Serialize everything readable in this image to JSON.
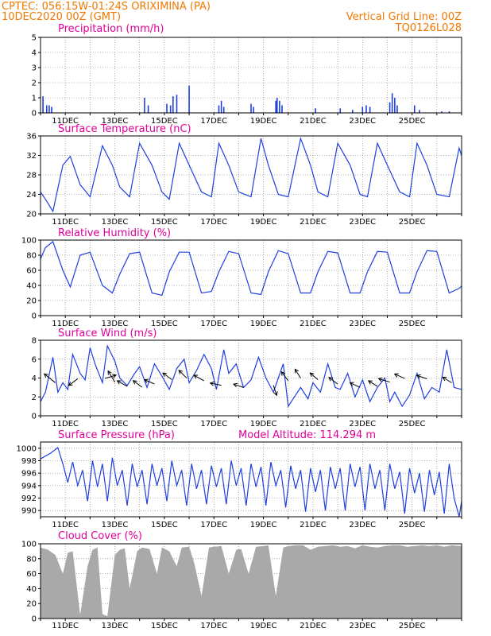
{
  "header": {
    "station": "CPTEC:   056:15W-01:24S   ORIXIMINA (PA)",
    "run": "10DEC2020 00Z (GMT)",
    "grid_note": "Vertical Grid Line: 00Z",
    "code": "TQ0126L028"
  },
  "colors": {
    "line": "#1f3fe0",
    "header": "#f07800",
    "title": "#e0009a",
    "cloud": "#a9a9a9"
  },
  "chart_data": [
    {
      "type": "bar",
      "title": "Precipitation (mm/h)",
      "ylim": [
        0,
        5
      ],
      "yticks": [
        0,
        1,
        2,
        3,
        4,
        5
      ],
      "x_tick_labels": [
        "11DEC",
        "13DEC",
        "15DEC",
        "17DEC",
        "19DEC",
        "21DEC",
        "23DEC",
        "25DEC"
      ],
      "bars": [
        [
          0.1,
          1.1
        ],
        [
          0.25,
          0.5
        ],
        [
          0.35,
          0.5
        ],
        [
          0.45,
          0.4
        ],
        [
          4.2,
          1.0
        ],
        [
          4.35,
          0.5
        ],
        [
          5.1,
          0.6
        ],
        [
          5.25,
          0.5
        ],
        [
          5.35,
          1.1
        ],
        [
          5.5,
          1.2
        ],
        [
          6.0,
          1.8
        ],
        [
          7.2,
          0.5
        ],
        [
          7.3,
          0.8
        ],
        [
          7.4,
          0.4
        ],
        [
          8.5,
          0.6
        ],
        [
          8.6,
          0.4
        ],
        [
          9.5,
          0.8
        ],
        [
          9.55,
          1.0
        ],
        [
          9.65,
          0.8
        ],
        [
          9.75,
          0.5
        ],
        [
          11.1,
          0.3
        ],
        [
          12.1,
          0.3
        ],
        [
          12.6,
          0.2
        ],
        [
          13.0,
          0.4
        ],
        [
          13.15,
          0.5
        ],
        [
          13.3,
          0.4
        ],
        [
          14.1,
          0.7
        ],
        [
          14.2,
          1.3
        ],
        [
          14.3,
          1.0
        ],
        [
          14.4,
          0.5
        ],
        [
          15.1,
          0.5
        ],
        [
          15.3,
          0.2
        ],
        [
          16.2,
          0.1
        ],
        [
          16.5,
          0.1
        ]
      ]
    },
    {
      "type": "line",
      "title": "Surface Temperature (nC)",
      "ylim": [
        20,
        36
      ],
      "yticks": [
        20,
        24,
        28,
        32,
        36
      ],
      "x_tick_labels": [
        "11DEC",
        "13DEC",
        "15DEC",
        "17DEC",
        "19DEC",
        "21DEC",
        "23DEC",
        "25DEC"
      ],
      "x": [
        0,
        0.2,
        0.5,
        0.9,
        1.2,
        1.6,
        2.0,
        2.5,
        2.9,
        3.2,
        3.6,
        4.0,
        4.5,
        4.9,
        5.2,
        5.6,
        6.0,
        6.5,
        6.9,
        7.2,
        7.6,
        8.0,
        8.5,
        8.9,
        9.2,
        9.6,
        10.0,
        10.5,
        10.9,
        11.2,
        11.6,
        12.0,
        12.5,
        12.9,
        13.2,
        13.6,
        14.0,
        14.5,
        14.9,
        15.2,
        15.6,
        16.0,
        16.5,
        16.9,
        17.0
      ],
      "values": [
        24.5,
        23,
        20.5,
        30,
        31.8,
        26,
        23.5,
        34,
        30,
        25.5,
        23.5,
        34.5,
        30,
        24.5,
        23,
        34.5,
        30,
        24.5,
        23.5,
        34.5,
        30,
        24.5,
        23.5,
        35.5,
        30,
        24,
        23.5,
        35.5,
        30,
        24.5,
        23.5,
        34.5,
        30,
        24,
        23.5,
        34.5,
        30,
        24.5,
        23.5,
        34.5,
        30,
        24,
        23.5,
        33.5,
        32
      ]
    },
    {
      "type": "line",
      "title": "Relative Humidity (%)",
      "ylim": [
        0,
        100
      ],
      "yticks": [
        0,
        20,
        40,
        60,
        80,
        100
      ],
      "x_tick_labels": [
        "11DEC",
        "13DEC",
        "15DEC",
        "17DEC",
        "19DEC",
        "21DEC",
        "23DEC",
        "25DEC"
      ],
      "x": [
        0,
        0.2,
        0.5,
        0.9,
        1.2,
        1.6,
        2.0,
        2.5,
        2.9,
        3.2,
        3.6,
        4.0,
        4.5,
        4.9,
        5.2,
        5.6,
        6.0,
        6.5,
        6.9,
        7.2,
        7.6,
        8.0,
        8.5,
        8.9,
        9.2,
        9.6,
        10.0,
        10.5,
        10.9,
        11.2,
        11.6,
        12.0,
        12.5,
        12.9,
        13.2,
        13.6,
        14.0,
        14.5,
        14.9,
        15.2,
        15.6,
        16.0,
        16.5,
        16.9,
        17.0
      ],
      "values": [
        75,
        90,
        98,
        60,
        38,
        80,
        84,
        40,
        30,
        55,
        82,
        84,
        30,
        27,
        58,
        84,
        84,
        30,
        32,
        58,
        85,
        82,
        30,
        28,
        58,
        86,
        82,
        30,
        30,
        58,
        85,
        83,
        30,
        30,
        58,
        85,
        84,
        30,
        30,
        58,
        86,
        85,
        30,
        36,
        39
      ]
    },
    {
      "type": "line",
      "title": "Surface Wind (m/s)",
      "ylim": [
        0,
        8
      ],
      "yticks": [
        0,
        2,
        4,
        6,
        8
      ],
      "x_tick_labels": [
        "11DEC",
        "13DEC",
        "15DEC",
        "17DEC",
        "19DEC",
        "21DEC",
        "23DEC",
        "25DEC"
      ],
      "x": [
        0,
        0.2,
        0.5,
        0.7,
        0.9,
        1.1,
        1.3,
        1.6,
        1.8,
        2.0,
        2.2,
        2.5,
        2.7,
        3.0,
        3.2,
        3.5,
        3.8,
        4.0,
        4.3,
        4.6,
        4.9,
        5.2,
        5.5,
        5.8,
        6.0,
        6.3,
        6.6,
        6.9,
        7.1,
        7.4,
        7.6,
        7.9,
        8.2,
        8.5,
        8.8,
        9.1,
        9.4,
        9.6,
        9.8,
        10.0,
        10.2,
        10.5,
        10.8,
        11.0,
        11.3,
        11.6,
        11.9,
        12.1,
        12.4,
        12.7,
        13.0,
        13.3,
        13.6,
        13.9,
        14.1,
        14.3,
        14.6,
        14.9,
        15.2,
        15.5,
        15.8,
        16.1,
        16.4,
        16.7,
        17.0
      ],
      "values": [
        1.5,
        2.5,
        6.2,
        2.5,
        3.5,
        2.8,
        6.5,
        4.5,
        3.8,
        7.2,
        5.5,
        3.5,
        7.4,
        5.8,
        4.0,
        3.2,
        4.5,
        5.2,
        3.0,
        5.5,
        4.2,
        2.8,
        5.0,
        6.0,
        3.5,
        4.8,
        6.5,
        5.0,
        2.8,
        7.0,
        4.5,
        5.5,
        3.0,
        3.8,
        6.2,
        4.0,
        2.5,
        4.0,
        5.5,
        1.0,
        1.8,
        3.0,
        1.8,
        3.5,
        2.5,
        5.5,
        3.0,
        2.8,
        4.5,
        2.0,
        3.8,
        1.5,
        3.0,
        4.0,
        1.5,
        2.5,
        1.0,
        2.2,
        4.5,
        1.8,
        3.0,
        2.5,
        7.0,
        3.0,
        2.8
      ]
    },
    {
      "type": "line",
      "title": "Surface Pressure (hPa)",
      "subtitle": "Model Altitude: 114.294 m",
      "ylim": [
        989,
        1001
      ],
      "yticks": [
        990,
        992,
        994,
        996,
        998,
        1000
      ],
      "x_tick_labels": [
        "11DEC",
        "13DEC",
        "15DEC",
        "17DEC",
        "19DEC",
        "21DEC",
        "23DEC",
        "25DEC"
      ],
      "x": [
        0,
        0.4,
        0.7,
        0.9,
        1.1,
        1.3,
        1.5,
        1.7,
        1.9,
        2.1,
        2.3,
        2.5,
        2.7,
        2.9,
        3.1,
        3.3,
        3.5,
        3.7,
        3.9,
        4.1,
        4.3,
        4.5,
        4.7,
        4.9,
        5.1,
        5.3,
        5.5,
        5.7,
        5.9,
        6.1,
        6.3,
        6.5,
        6.7,
        6.9,
        7.1,
        7.3,
        7.5,
        7.7,
        7.9,
        8.1,
        8.3,
        8.5,
        8.7,
        8.9,
        9.1,
        9.3,
        9.5,
        9.7,
        9.9,
        10.1,
        10.3,
        10.5,
        10.7,
        10.9,
        11.1,
        11.3,
        11.5,
        11.7,
        11.9,
        12.1,
        12.3,
        12.5,
        12.7,
        12.9,
        13.1,
        13.3,
        13.5,
        13.7,
        13.9,
        14.1,
        14.3,
        14.5,
        14.7,
        14.9,
        15.1,
        15.3,
        15.5,
        15.7,
        15.9,
        16.1,
        16.3,
        16.5,
        16.7,
        16.9,
        17.0
      ],
      "values": [
        998.3,
        999.2,
        1000.1,
        997.5,
        994.5,
        997.8,
        994.0,
        996.5,
        991.5,
        998.0,
        993.8,
        997.5,
        991.5,
        998.5,
        994.0,
        996.5,
        990.8,
        997.5,
        993.8,
        996.5,
        991.0,
        997.5,
        994.0,
        996.8,
        991.5,
        998.0,
        994.0,
        996.5,
        990.8,
        997.5,
        993.5,
        996.5,
        991.0,
        997.2,
        993.8,
        996.8,
        991.0,
        998.0,
        994.0,
        996.8,
        990.8,
        997.5,
        993.8,
        997.0,
        990.8,
        997.8,
        994.0,
        996.5,
        990.5,
        997.2,
        993.5,
        996.5,
        989.8,
        996.8,
        993.0,
        996.5,
        990.0,
        997.0,
        993.5,
        996.8,
        990.0,
        997.5,
        993.8,
        997.0,
        990.0,
        997.5,
        993.5,
        996.5,
        990.0,
        997.5,
        993.5,
        996.2,
        989.5,
        996.8,
        992.8,
        996.0,
        989.8,
        996.5,
        992.5,
        996.2,
        989.5,
        997.5,
        992.0,
        989.0,
        991.5
      ]
    },
    {
      "type": "area",
      "title": "Cloud Cover (%)",
      "ylim": [
        0,
        100
      ],
      "yticks": [
        0,
        20,
        40,
        60,
        80,
        100
      ],
      "x_tick_labels": [
        "11DEC",
        "13DEC",
        "15DEC",
        "17DEC",
        "19DEC",
        "21DEC",
        "23DEC",
        "25DEC"
      ],
      "x": [
        0,
        0.3,
        0.6,
        0.9,
        1.1,
        1.3,
        1.6,
        1.9,
        2.1,
        2.3,
        2.5,
        2.7,
        3.0,
        3.2,
        3.4,
        3.6,
        3.9,
        4.1,
        4.4,
        4.7,
        4.9,
        5.2,
        5.5,
        5.7,
        6.0,
        6.2,
        6.5,
        6.8,
        7.0,
        7.3,
        7.6,
        7.9,
        8.1,
        8.4,
        8.7,
        9.0,
        9.2,
        9.5,
        9.8,
        10.0,
        10.3,
        10.6,
        10.9,
        11.2,
        11.5,
        11.8,
        12.1,
        12.4,
        12.7,
        13.0,
        13.3,
        13.6,
        13.9,
        14.2,
        14.5,
        14.8,
        15.1,
        15.4,
        15.7,
        16.0,
        16.3,
        16.6,
        17.0
      ],
      "values": [
        95,
        92,
        85,
        60,
        88,
        90,
        5,
        70,
        92,
        95,
        6,
        3,
        85,
        92,
        94,
        40,
        90,
        95,
        93,
        60,
        95,
        90,
        70,
        95,
        96,
        75,
        30,
        95,
        96,
        97,
        60,
        92,
        93,
        60,
        96,
        97,
        98,
        30,
        95,
        97,
        98,
        98,
        92,
        96,
        97,
        98,
        96,
        97,
        94,
        98,
        96,
        95,
        97,
        98,
        98,
        96,
        97,
        98,
        97,
        98,
        96,
        98,
        97
      ]
    }
  ]
}
